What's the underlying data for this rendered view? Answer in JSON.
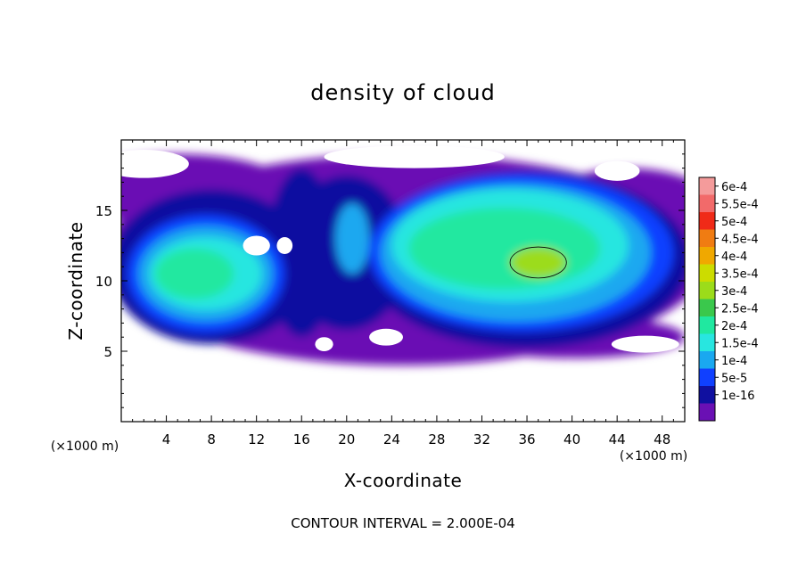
{
  "chart_data": {
    "type": "heatmap",
    "title": "density of cloud",
    "xlabel": "X-coordinate",
    "ylabel": "Z-coordinate",
    "x_unit_label": "(×1000 m)",
    "x_ticks": [
      4,
      8,
      12,
      16,
      20,
      24,
      28,
      32,
      36,
      40,
      44,
      48
    ],
    "y_ticks": [
      5,
      10,
      15
    ],
    "xlim": [
      0,
      50
    ],
    "ylim": [
      0,
      20
    ],
    "footer": "CONTOUR INTERVAL = 2.000E-04",
    "colorbar": {
      "labels": [
        "6e-4",
        "5.5e-4",
        "5e-4",
        "4.5e-4",
        "4e-4",
        "3.5e-4",
        "3e-4",
        "2.5e-4",
        "2e-4",
        "1.5e-4",
        "1e-4",
        "5e-5",
        "1e-16"
      ],
      "colors": [
        "#f49b9b",
        "#f26a6a",
        "#f02a18",
        "#f07c12",
        "#f0a800",
        "#ccdc00",
        "#9cdc1a",
        "#3ac84c",
        "#20e8a0",
        "#28e6e0",
        "#1aa8f0",
        "#1040ff",
        "#1010a0",
        "#6a10b4"
      ]
    },
    "blobs": [
      {
        "x": 25,
        "y": 11.5,
        "rx": 27,
        "ry": 7.5,
        "level": 1
      },
      {
        "x": 5,
        "y": 16.5,
        "rx": 10,
        "ry": 2.5,
        "level": 1
      },
      {
        "x": 45,
        "y": 15,
        "rx": 8,
        "ry": 3,
        "level": 1
      },
      {
        "x": 40,
        "y": 6,
        "rx": 10,
        "ry": 1.5,
        "level": 1
      },
      {
        "x": 8,
        "y": 11,
        "rx": 9,
        "ry": 5.5,
        "level": 2
      },
      {
        "x": 36,
        "y": 11.5,
        "rx": 14.5,
        "ry": 6.3,
        "level": 2
      },
      {
        "x": 20,
        "y": 12,
        "rx": 5.5,
        "ry": 5.5,
        "level": 2
      },
      {
        "x": 16,
        "y": 12,
        "rx": 3,
        "ry": 6,
        "level": 2
      },
      {
        "x": 7.5,
        "y": 10.5,
        "rx": 7,
        "ry": 4.2,
        "level": 3
      },
      {
        "x": 35.5,
        "y": 12,
        "rx": 13.5,
        "ry": 5.6,
        "level": 3
      },
      {
        "x": 7.5,
        "y": 10.5,
        "rx": 6,
        "ry": 3.4,
        "level": 4
      },
      {
        "x": 35,
        "y": 12,
        "rx": 12,
        "ry": 4.9,
        "level": 4
      },
      {
        "x": 20.5,
        "y": 13,
        "rx": 1.5,
        "ry": 2.5,
        "level": 4
      },
      {
        "x": 7.5,
        "y": 10.5,
        "rx": 5,
        "ry": 2.6,
        "level": 5
      },
      {
        "x": 34.5,
        "y": 12.5,
        "rx": 10.5,
        "ry": 4.0,
        "level": 5
      },
      {
        "x": 6.5,
        "y": 10.5,
        "rx": 3.5,
        "ry": 1.8,
        "level": 6
      },
      {
        "x": 34,
        "y": 12.3,
        "rx": 8.5,
        "ry": 2.9,
        "level": 6
      },
      {
        "x": 37,
        "y": 11.3,
        "rx": 2.5,
        "ry": 1.1,
        "level": 8
      }
    ],
    "holes": [
      {
        "x": 12,
        "y": 12.5,
        "rx": 1.2,
        "ry": 0.7
      },
      {
        "x": 14.5,
        "y": 12.5,
        "rx": 0.7,
        "ry": 0.6
      },
      {
        "x": 23.5,
        "y": 6,
        "rx": 1.5,
        "ry": 0.6
      },
      {
        "x": 18,
        "y": 5.5,
        "rx": 0.8,
        "ry": 0.5
      },
      {
        "x": 2,
        "y": 18.3,
        "rx": 4,
        "ry": 1
      },
      {
        "x": 26,
        "y": 18.8,
        "rx": 8,
        "ry": 0.8
      },
      {
        "x": 44,
        "y": 17.8,
        "rx": 2,
        "ry": 0.7
      },
      {
        "x": 46.5,
        "y": 5.5,
        "rx": 3,
        "ry": 0.6
      }
    ]
  }
}
